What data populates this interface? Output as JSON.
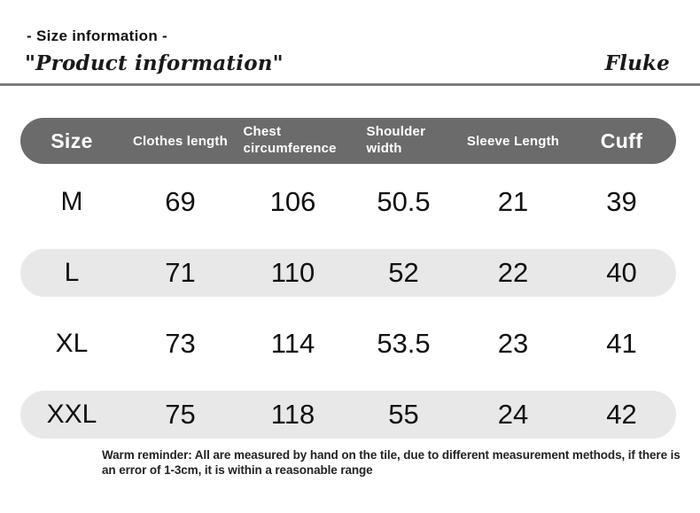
{
  "header": {
    "size_info": "- Size information -",
    "product_info": "\"Product information\"",
    "brand": "Fluke"
  },
  "chart_data": {
    "type": "table",
    "title": "Size information",
    "columns": [
      "Size",
      "Clothes length",
      "Chest circumference",
      "Shoulder width",
      "Sleeve Length",
      "Cuff"
    ],
    "rows": [
      [
        "M",
        "69",
        "106",
        "50.5",
        "21",
        "39"
      ],
      [
        "L",
        "71",
        "110",
        "52",
        "22",
        "40"
      ],
      [
        "XL",
        "73",
        "114",
        "53.5",
        "23",
        "41"
      ],
      [
        "XXL",
        "75",
        "118",
        "55",
        "24",
        "42"
      ]
    ]
  },
  "note": "Warm reminder: All are measured by hand on the tile, due to different measurement methods, if there is an error of 1-3cm, it is within a reasonable range",
  "colors": {
    "header_bg": "#6b6b6b",
    "header_text": "#ffffff",
    "row_alt_bg": "#e8e8e8",
    "text": "#111111",
    "divider": "#7d7d7d"
  }
}
